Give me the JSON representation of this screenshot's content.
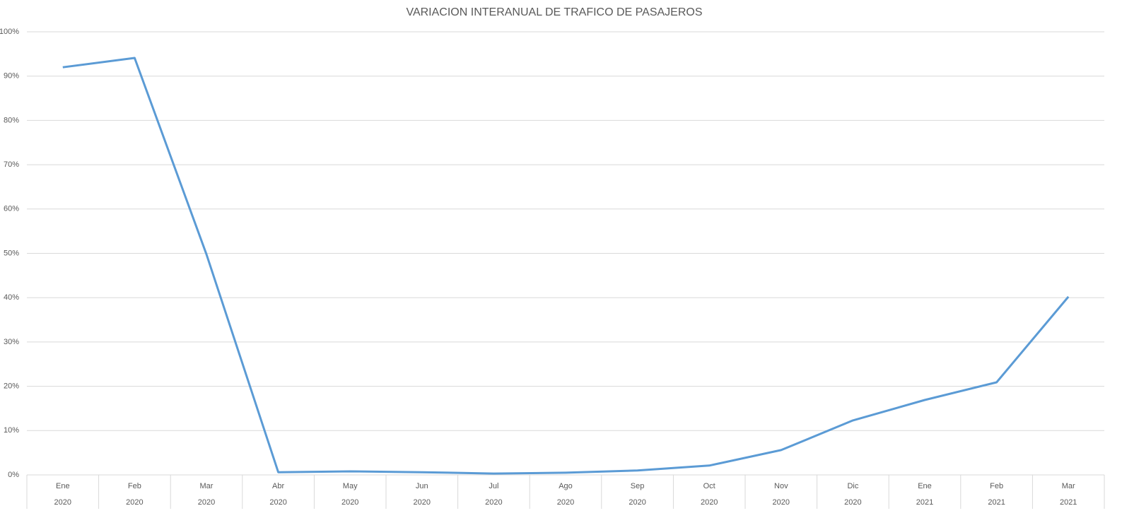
{
  "chart_data": {
    "type": "line",
    "title": "VARIACION INTERANUAL DE TRAFICO DE PASAJEROS",
    "categories": [
      "Ene",
      "Feb",
      "Mar",
      "Abr",
      "May",
      "Jun",
      "Jul",
      "Ago",
      "Sep",
      "Oct",
      "Nov",
      "Dic",
      "Ene",
      "Feb",
      "Mar"
    ],
    "category_years": [
      "2020",
      "2020",
      "2020",
      "2020",
      "2020",
      "2020",
      "2020",
      "2020",
      "2020",
      "2020",
      "2020",
      "2020",
      "2021",
      "2021",
      "2021"
    ],
    "values": [
      92.0,
      94.1,
      49.8,
      0.6,
      0.8,
      0.6,
      0.3,
      0.5,
      1.0,
      2.1,
      5.6,
      12.3,
      16.9,
      20.9,
      40.2
    ],
    "color": "#5b9bd5",
    "ylim": [
      0,
      100
    ],
    "yticks": [
      {
        "value": 0,
        "label": "0%"
      },
      {
        "value": 10,
        "label": "10%"
      },
      {
        "value": 20,
        "label": "20%"
      },
      {
        "value": 30,
        "label": "30%"
      },
      {
        "value": 40,
        "label": "40%"
      },
      {
        "value": 50,
        "label": "50%"
      },
      {
        "value": 60,
        "label": "60%"
      },
      {
        "value": 70,
        "label": "70%"
      },
      {
        "value": 80,
        "label": "80%"
      },
      {
        "value": 90,
        "label": "90%"
      },
      {
        "value": 100,
        "label": "100%"
      }
    ],
    "grid": true
  }
}
